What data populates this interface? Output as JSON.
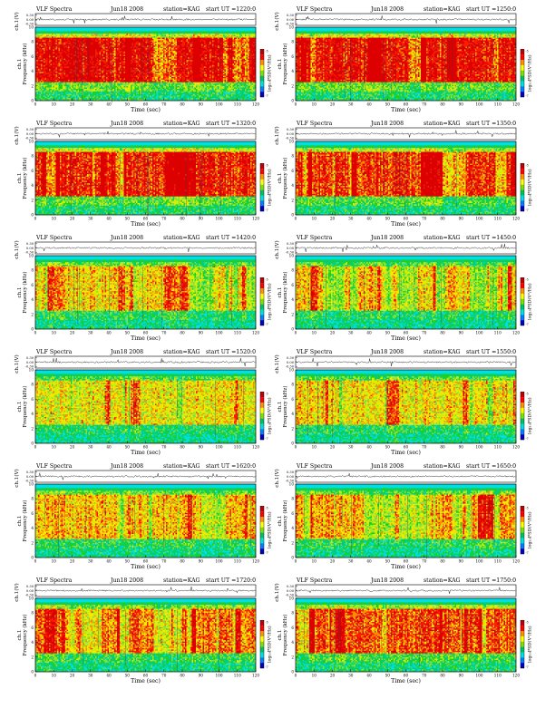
{
  "palette": {
    "spec": [
      "#00e0e0",
      "#00cc88",
      "#20d020",
      "#80e040",
      "#d0f000",
      "#ffe600",
      "#ff8a00",
      "#ff1a00",
      "#dd0000"
    ],
    "bar": [
      "#0000c0",
      "#0080ff",
      "#00e0e0",
      "#00c060",
      "#80e000",
      "#ffff00",
      "#ff9000",
      "#ff0000",
      "#c00000"
    ],
    "top_band": "#00d8d8",
    "lowband": "#00e0e0"
  },
  "chart_data": [
    {
      "type": "heatmap",
      "header": {
        "title": "VLF Spectra",
        "date": "Jun18 2008",
        "station": "station=KAG",
        "start": "start  UT  =1220:0"
      },
      "ts_ylabel": "ch.1(V)",
      "ts_ticks": [
        "0.30",
        "0.00",
        "-0.30"
      ],
      "ts_ylim": [
        -0.3,
        0.3
      ],
      "ylabel_top": "ch.1",
      "ylabel": "Frequency  (kHz)",
      "yticks": [
        "0",
        "2",
        "4",
        "6",
        "8",
        "10"
      ],
      "ylim": [
        0,
        10
      ],
      "xlabel": "Time  (sec)",
      "xticks": [
        "0",
        "10",
        "20",
        "30",
        "40",
        "50",
        "60",
        "70",
        "80",
        "90",
        "100",
        "110",
        "120"
      ],
      "xlim": [
        0,
        120
      ],
      "colorbar_label": "log₁₀PSD(V²/Hz)",
      "colorbar_ticks": [
        "-5",
        "-7"
      ],
      "activity": 0.95
    },
    {
      "type": "heatmap",
      "header": {
        "title": "VLF Spectra",
        "date": "Jun18 2008",
        "station": "station=KAG",
        "start": "start  UT  =1250:0"
      },
      "ts_ylabel": "ch.1(V)",
      "ts_ticks": [
        "0.30",
        "0.00",
        "-0.30"
      ],
      "ts_ylim": [
        -0.3,
        0.3
      ],
      "ylabel_top": "ch.1",
      "ylabel": "Frequency  (kHz)",
      "yticks": [
        "0",
        "2",
        "4",
        "6",
        "8",
        "10"
      ],
      "ylim": [
        0,
        10
      ],
      "xlabel": "Time  (sec)",
      "xticks": [
        "0",
        "10",
        "20",
        "30",
        "40",
        "50",
        "60",
        "70",
        "80",
        "90",
        "100",
        "110",
        "120"
      ],
      "xlim": [
        0,
        120
      ],
      "colorbar_label": "log₁₀PSD(V²/Hz)",
      "colorbar_ticks": [
        "-5",
        "-7"
      ],
      "activity": 0.92
    },
    {
      "type": "heatmap",
      "header": {
        "title": "VLF Spectra",
        "date": "Jun18 2008",
        "station": "station=KAG",
        "start": "start  UT  =1320:0"
      },
      "ts_ylabel": "ch.1(V)",
      "ts_ticks": [
        "0.30",
        "0.00",
        "-0.30"
      ],
      "ts_ylim": [
        -0.3,
        0.3
      ],
      "ylabel_top": "ch.1",
      "ylabel": "Frequency  (kHz)",
      "yticks": [
        "0",
        "2",
        "4",
        "6",
        "8",
        "10"
      ],
      "ylim": [
        0,
        10
      ],
      "xlabel": "Time  (sec)",
      "xticks": [
        "0",
        "10",
        "20",
        "30",
        "40",
        "50",
        "60",
        "70",
        "80",
        "90",
        "100",
        "110",
        "120"
      ],
      "xlim": [
        0,
        120
      ],
      "colorbar_label": "log₁₀PSD(V²/Hz)",
      "colorbar_ticks": [
        "-5",
        "-7"
      ],
      "activity": 0.88
    },
    {
      "type": "heatmap",
      "header": {
        "title": "VLF Spectra",
        "date": "Jun18 2008",
        "station": "station=KAG",
        "start": "start  UT  =1350:0"
      },
      "ts_ylabel": "ch.1(V)",
      "ts_ticks": [
        "0.30",
        "0.00",
        "-0.30"
      ],
      "ts_ylim": [
        -0.3,
        0.3
      ],
      "ylabel_top": "ch.1",
      "ylabel": "Frequency  (kHz)",
      "yticks": [
        "0",
        "2",
        "4",
        "6",
        "8",
        "10"
      ],
      "ylim": [
        0,
        10
      ],
      "xlabel": "Time  (sec)",
      "xticks": [
        "0",
        "10",
        "20",
        "30",
        "40",
        "50",
        "60",
        "70",
        "80",
        "90",
        "100",
        "110",
        "120"
      ],
      "xlim": [
        0,
        120
      ],
      "colorbar_label": "log₁₀PSD(V²/Hz)",
      "colorbar_ticks": [
        "-5",
        "-7"
      ],
      "activity": 0.85
    },
    {
      "type": "heatmap",
      "header": {
        "title": "VLF Spectra",
        "date": "Jun18 2008",
        "station": "station=KAG",
        "start": "start  UT  =1420:0"
      },
      "ts_ylabel": "ch.1(V)",
      "ts_ticks": [
        "0.30",
        "0.00",
        "-0.30"
      ],
      "ts_ylim": [
        -0.3,
        0.3
      ],
      "ylabel_top": "ch.1",
      "ylabel": "Frequency  (kHz)",
      "yticks": [
        "0",
        "2",
        "4",
        "6",
        "8",
        "10"
      ],
      "ylim": [
        0,
        10
      ],
      "xlabel": "Time  (sec)",
      "xticks": [
        "0",
        "10",
        "20",
        "30",
        "40",
        "50",
        "60",
        "70",
        "80",
        "90",
        "100",
        "110",
        "120"
      ],
      "xlim": [
        0,
        120
      ],
      "colorbar_label": "log₁₀PSD(V²/Hz)",
      "colorbar_ticks": [
        "-5",
        "-7"
      ],
      "activity": 0.6
    },
    {
      "type": "heatmap",
      "header": {
        "title": "VLF Spectra",
        "date": "Jun18 2008",
        "station": "station=KAG",
        "start": "start  UT  =1450:0"
      },
      "ts_ylabel": "ch.1(V)",
      "ts_ticks": [
        "0.30",
        "0.00",
        "-0.30"
      ],
      "ts_ylim": [
        -0.3,
        0.3
      ],
      "ylabel_top": "ch.1",
      "ylabel": "Frequency  (kHz)",
      "yticks": [
        "0",
        "2",
        "4",
        "6",
        "8",
        "10"
      ],
      "ylim": [
        0,
        10
      ],
      "xlabel": "Time  (sec)",
      "xticks": [
        "0",
        "10",
        "20",
        "30",
        "40",
        "50",
        "60",
        "70",
        "80",
        "90",
        "100",
        "110",
        "120"
      ],
      "xlim": [
        0,
        120
      ],
      "colorbar_label": "log₁₀PSD(V²/Hz)",
      "colorbar_ticks": [
        "-5",
        "-7"
      ],
      "activity": 0.62
    },
    {
      "type": "heatmap",
      "header": {
        "title": "VLF Spectra",
        "date": "Jun18 2008",
        "station": "station=KAG",
        "start": "start  UT  =1520:0"
      },
      "ts_ylabel": "ch.1(V)",
      "ts_ticks": [
        "0.30",
        "0.00",
        "-0.30"
      ],
      "ts_ylim": [
        -0.3,
        0.3
      ],
      "ylabel_top": "ch.1",
      "ylabel": "Frequency  (kHz)",
      "yticks": [
        "0",
        "2",
        "4",
        "6",
        "8",
        "10"
      ],
      "ylim": [
        0,
        10
      ],
      "xlabel": "Time  (sec)",
      "xticks": [
        "0",
        "10",
        "20",
        "30",
        "40",
        "50",
        "60",
        "70",
        "80",
        "90",
        "100",
        "110",
        "120"
      ],
      "xlim": [
        0,
        120
      ],
      "colorbar_label": "log₁₀PSD(V²/Hz)",
      "colorbar_ticks": [
        "-5",
        "-7"
      ],
      "activity": 0.55
    },
    {
      "type": "heatmap",
      "header": {
        "title": "VLF Spectra",
        "date": "Jun18 2008",
        "station": "station=KAG",
        "start": "start  UT  =1550:0"
      },
      "ts_ylabel": "ch.1(V)",
      "ts_ticks": [
        "0.30",
        "0.00",
        "-0.30"
      ],
      "ts_ylim": [
        -0.3,
        0.3
      ],
      "ylabel_top": "ch.1",
      "ylabel": "Frequency  (kHz)",
      "yticks": [
        "0",
        "2",
        "4",
        "6",
        "8",
        "10"
      ],
      "ylim": [
        0,
        10
      ],
      "xlabel": "Time  (sec)",
      "xticks": [
        "0",
        "10",
        "20",
        "30",
        "40",
        "50",
        "60",
        "70",
        "80",
        "90",
        "100",
        "110",
        "120"
      ],
      "xlim": [
        0,
        120
      ],
      "colorbar_label": "log₁₀PSD(V²/Hz)",
      "colorbar_ticks": [
        "-5",
        "-7"
      ],
      "activity": 0.58
    },
    {
      "type": "heatmap",
      "header": {
        "title": "VLF Spectra",
        "date": "Jun18 2008",
        "station": "station=KAG",
        "start": "start  UT  =1620:0"
      },
      "ts_ylabel": "ch.1(V)",
      "ts_ticks": [
        "0.30",
        "0.00",
        "-0.30"
      ],
      "ts_ylim": [
        -0.3,
        0.3
      ],
      "ylabel_top": "ch.1",
      "ylabel": "Frequency  (kHz)",
      "yticks": [
        "0",
        "2",
        "4",
        "6",
        "8",
        "10"
      ],
      "ylim": [
        0,
        10
      ],
      "xlabel": "Time  (sec)",
      "xticks": [
        "0",
        "10",
        "20",
        "30",
        "40",
        "50",
        "60",
        "70",
        "80",
        "90",
        "100",
        "110",
        "120"
      ],
      "xlim": [
        0,
        120
      ],
      "colorbar_label": "log₁₀PSD(V²/Hz)",
      "colorbar_ticks": [
        "-5",
        "-7"
      ],
      "activity": 0.65
    },
    {
      "type": "heatmap",
      "header": {
        "title": "VLF Spectra",
        "date": "Jun18 2008",
        "station": "station=KAG",
        "start": "start  UT  =1650:0"
      },
      "ts_ylabel": "ch.1(V)",
      "ts_ticks": [
        "0.30",
        "0.00",
        "-0.30"
      ],
      "ts_ylim": [
        -0.3,
        0.3
      ],
      "ylabel_top": "ch.1",
      "ylabel": "Frequency  (kHz)",
      "yticks": [
        "0",
        "2",
        "4",
        "6",
        "8",
        "10"
      ],
      "ylim": [
        0,
        10
      ],
      "xlabel": "Time  (sec)",
      "xticks": [
        "0",
        "10",
        "20",
        "30",
        "40",
        "50",
        "60",
        "70",
        "80",
        "90",
        "100",
        "110",
        "120"
      ],
      "xlim": [
        0,
        120
      ],
      "colorbar_label": "log₁₀PSD(V²/Hz)",
      "colorbar_ticks": [
        "-5",
        "-7"
      ],
      "activity": 0.68
    },
    {
      "type": "heatmap",
      "header": {
        "title": "VLF Spectra",
        "date": "Jun18 2008",
        "station": "station=KAG",
        "start": "start  UT  =1720:0"
      },
      "ts_ylabel": "ch.1(V)",
      "ts_ticks": [
        "0.30",
        "0.00",
        "-0.30"
      ],
      "ts_ylim": [
        -0.3,
        0.3
      ],
      "ylabel_top": "ch.1",
      "ylabel": "Frequency  (kHz)",
      "yticks": [
        "0",
        "2",
        "4",
        "6",
        "8",
        "10"
      ],
      "ylim": [
        0,
        10
      ],
      "xlabel": "Time  (sec)",
      "xticks": [
        "0",
        "10",
        "20",
        "30",
        "40",
        "50",
        "60",
        "70",
        "80",
        "90",
        "100",
        "110",
        "120"
      ],
      "xlim": [
        0,
        120
      ],
      "colorbar_label": "log₁₀PSD(V²/Hz)",
      "colorbar_ticks": [
        "-5",
        "-7"
      ],
      "activity": 0.75
    },
    {
      "type": "heatmap",
      "header": {
        "title": "VLF Spectra",
        "date": "Jun18 2008",
        "station": "station=KAG",
        "start": "start  UT  =1750:0"
      },
      "ts_ylabel": "ch.1(V)",
      "ts_ticks": [
        "0.30",
        "0.00",
        "-0.30"
      ],
      "ts_ylim": [
        -0.3,
        0.3
      ],
      "ylabel_top": "ch.1",
      "ylabel": "Frequency  (kHz)",
      "yticks": [
        "0",
        "2",
        "4",
        "6",
        "8",
        "10"
      ],
      "ylim": [
        0,
        10
      ],
      "xlabel": "Time  (sec)",
      "xticks": [
        "0",
        "10",
        "20",
        "30",
        "40",
        "50",
        "60",
        "70",
        "80",
        "90",
        "100",
        "110",
        "120"
      ],
      "xlim": [
        0,
        120
      ],
      "colorbar_label": "log₁₀PSD(V²/Hz)",
      "colorbar_ticks": [
        "-5",
        "-7"
      ],
      "activity": 0.8
    }
  ]
}
